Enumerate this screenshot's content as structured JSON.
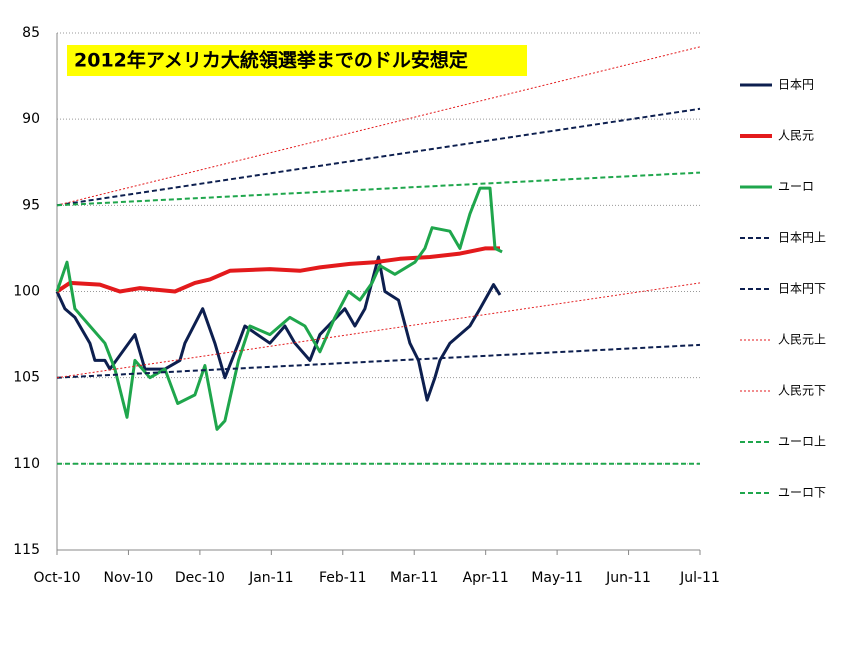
{
  "chart_data": {
    "type": "line",
    "title": "2012年アメリカ大統領選挙までのドル安想定",
    "xlim": [
      0,
      9
    ],
    "xticks": [
      {
        "value": 0,
        "label": "Oct-10"
      },
      {
        "value": 1,
        "label": "Nov-10"
      },
      {
        "value": 2,
        "label": "Dec-10"
      },
      {
        "value": 3,
        "label": "Jan-11"
      },
      {
        "value": 4,
        "label": "Feb-11"
      },
      {
        "value": 5,
        "label": "Mar-11"
      },
      {
        "value": 6,
        "label": "Apr-11"
      },
      {
        "value": 7,
        "label": "May-11"
      },
      {
        "value": 8,
        "label": "Jun-11"
      },
      {
        "value": 9,
        "label": "Jul-11"
      }
    ],
    "ylim": [
      85,
      115
    ],
    "yticks": [
      85,
      90,
      95,
      100,
      105,
      110,
      115
    ],
    "y_inverted": true,
    "grid": true,
    "legend": "right",
    "series": [
      {
        "name": "日本円",
        "color": "#0d1f4f",
        "style": "solid",
        "width": 3,
        "x": [
          0,
          0.11,
          0.25,
          0.46,
          0.53,
          0.67,
          0.74,
          1.09,
          1.23,
          1.51,
          1.72,
          1.79,
          2.04,
          2.21,
          2.35,
          2.54,
          2.63,
          2.98,
          3.19,
          3.33,
          3.54,
          3.68,
          4.03,
          4.17,
          4.31,
          4.5,
          4.59,
          4.78,
          4.94,
          5.06,
          5.18,
          5.29,
          5.36,
          5.5,
          5.78,
          5.92,
          6.11,
          6.2
        ],
        "values": [
          100,
          101,
          101.5,
          103,
          104,
          104,
          104.5,
          102.5,
          104.5,
          104.5,
          104,
          103,
          101,
          103,
          105,
          103,
          102,
          103,
          102,
          103,
          104,
          102.5,
          101,
          102,
          101,
          98,
          100,
          100.5,
          103,
          104,
          106.3,
          105,
          104,
          103,
          102,
          101,
          99.6,
          100.2
        ]
      },
      {
        "name": "人民元",
        "color": "#e31a1c",
        "style": "solid",
        "width": 4,
        "x": [
          0,
          0.18,
          0.6,
          0.88,
          1.16,
          1.65,
          1.93,
          2.14,
          2.42,
          2.98,
          3.4,
          3.68,
          4.1,
          4.45,
          4.8,
          5.22,
          5.64,
          5.99,
          6.2
        ],
        "values": [
          100,
          99.5,
          99.6,
          100,
          99.8,
          100,
          99.5,
          99.3,
          98.8,
          98.7,
          98.8,
          98.6,
          98.4,
          98.3,
          98.1,
          98,
          97.8,
          97.5,
          97.5
        ]
      },
      {
        "name": "ユーロ",
        "color": "#1fa64c",
        "style": "solid",
        "width": 3,
        "x": [
          0,
          0.14,
          0.25,
          0.46,
          0.67,
          0.81,
          0.98,
          1.09,
          1.3,
          1.51,
          1.69,
          1.93,
          2.07,
          2.24,
          2.35,
          2.54,
          2.7,
          2.98,
          3.26,
          3.47,
          3.68,
          3.89,
          4.08,
          4.24,
          4.41,
          4.52,
          4.73,
          5.01,
          5.15,
          5.25,
          5.5,
          5.64,
          5.78,
          5.92,
          6.06,
          6.13,
          6.23
        ],
        "values": [
          100,
          98.3,
          101,
          102,
          103,
          104.5,
          107.3,
          104,
          105,
          104.5,
          106.5,
          106,
          104.3,
          108,
          107.5,
          104,
          102,
          102.5,
          101.5,
          102,
          103.5,
          101.5,
          100,
          100.5,
          99.5,
          98.5,
          99,
          98.3,
          97.5,
          96.3,
          96.5,
          97.5,
          95.5,
          94,
          94,
          97.5,
          97.7
        ]
      },
      {
        "name": "日本円上",
        "color": "#0d1f4f",
        "style": "dashed",
        "width": 2,
        "x": [
          0,
          9
        ],
        "values": [
          95,
          89.4
        ]
      },
      {
        "name": "日本円下",
        "color": "#0d1f4f",
        "style": "dashed",
        "width": 2,
        "x": [
          0,
          9
        ],
        "values": [
          105,
          103.1
        ]
      },
      {
        "name": "人民元上",
        "color": "#e31a1c",
        "style": "dotted",
        "width": 1,
        "x": [
          0,
          9
        ],
        "values": [
          95,
          85.8
        ]
      },
      {
        "name": "人民元下",
        "color": "#e31a1c",
        "style": "dotted",
        "width": 1,
        "x": [
          0,
          9
        ],
        "values": [
          105,
          99.5
        ]
      },
      {
        "name": "ユーロ上",
        "color": "#1fa64c",
        "style": "dashed",
        "width": 2,
        "x": [
          0,
          9
        ],
        "values": [
          95,
          93.1
        ]
      },
      {
        "name": "ユーロ下",
        "color": "#1fa64c",
        "style": "dashed",
        "width": 2,
        "x": [
          0,
          9
        ],
        "values": [
          110,
          110
        ]
      }
    ]
  }
}
